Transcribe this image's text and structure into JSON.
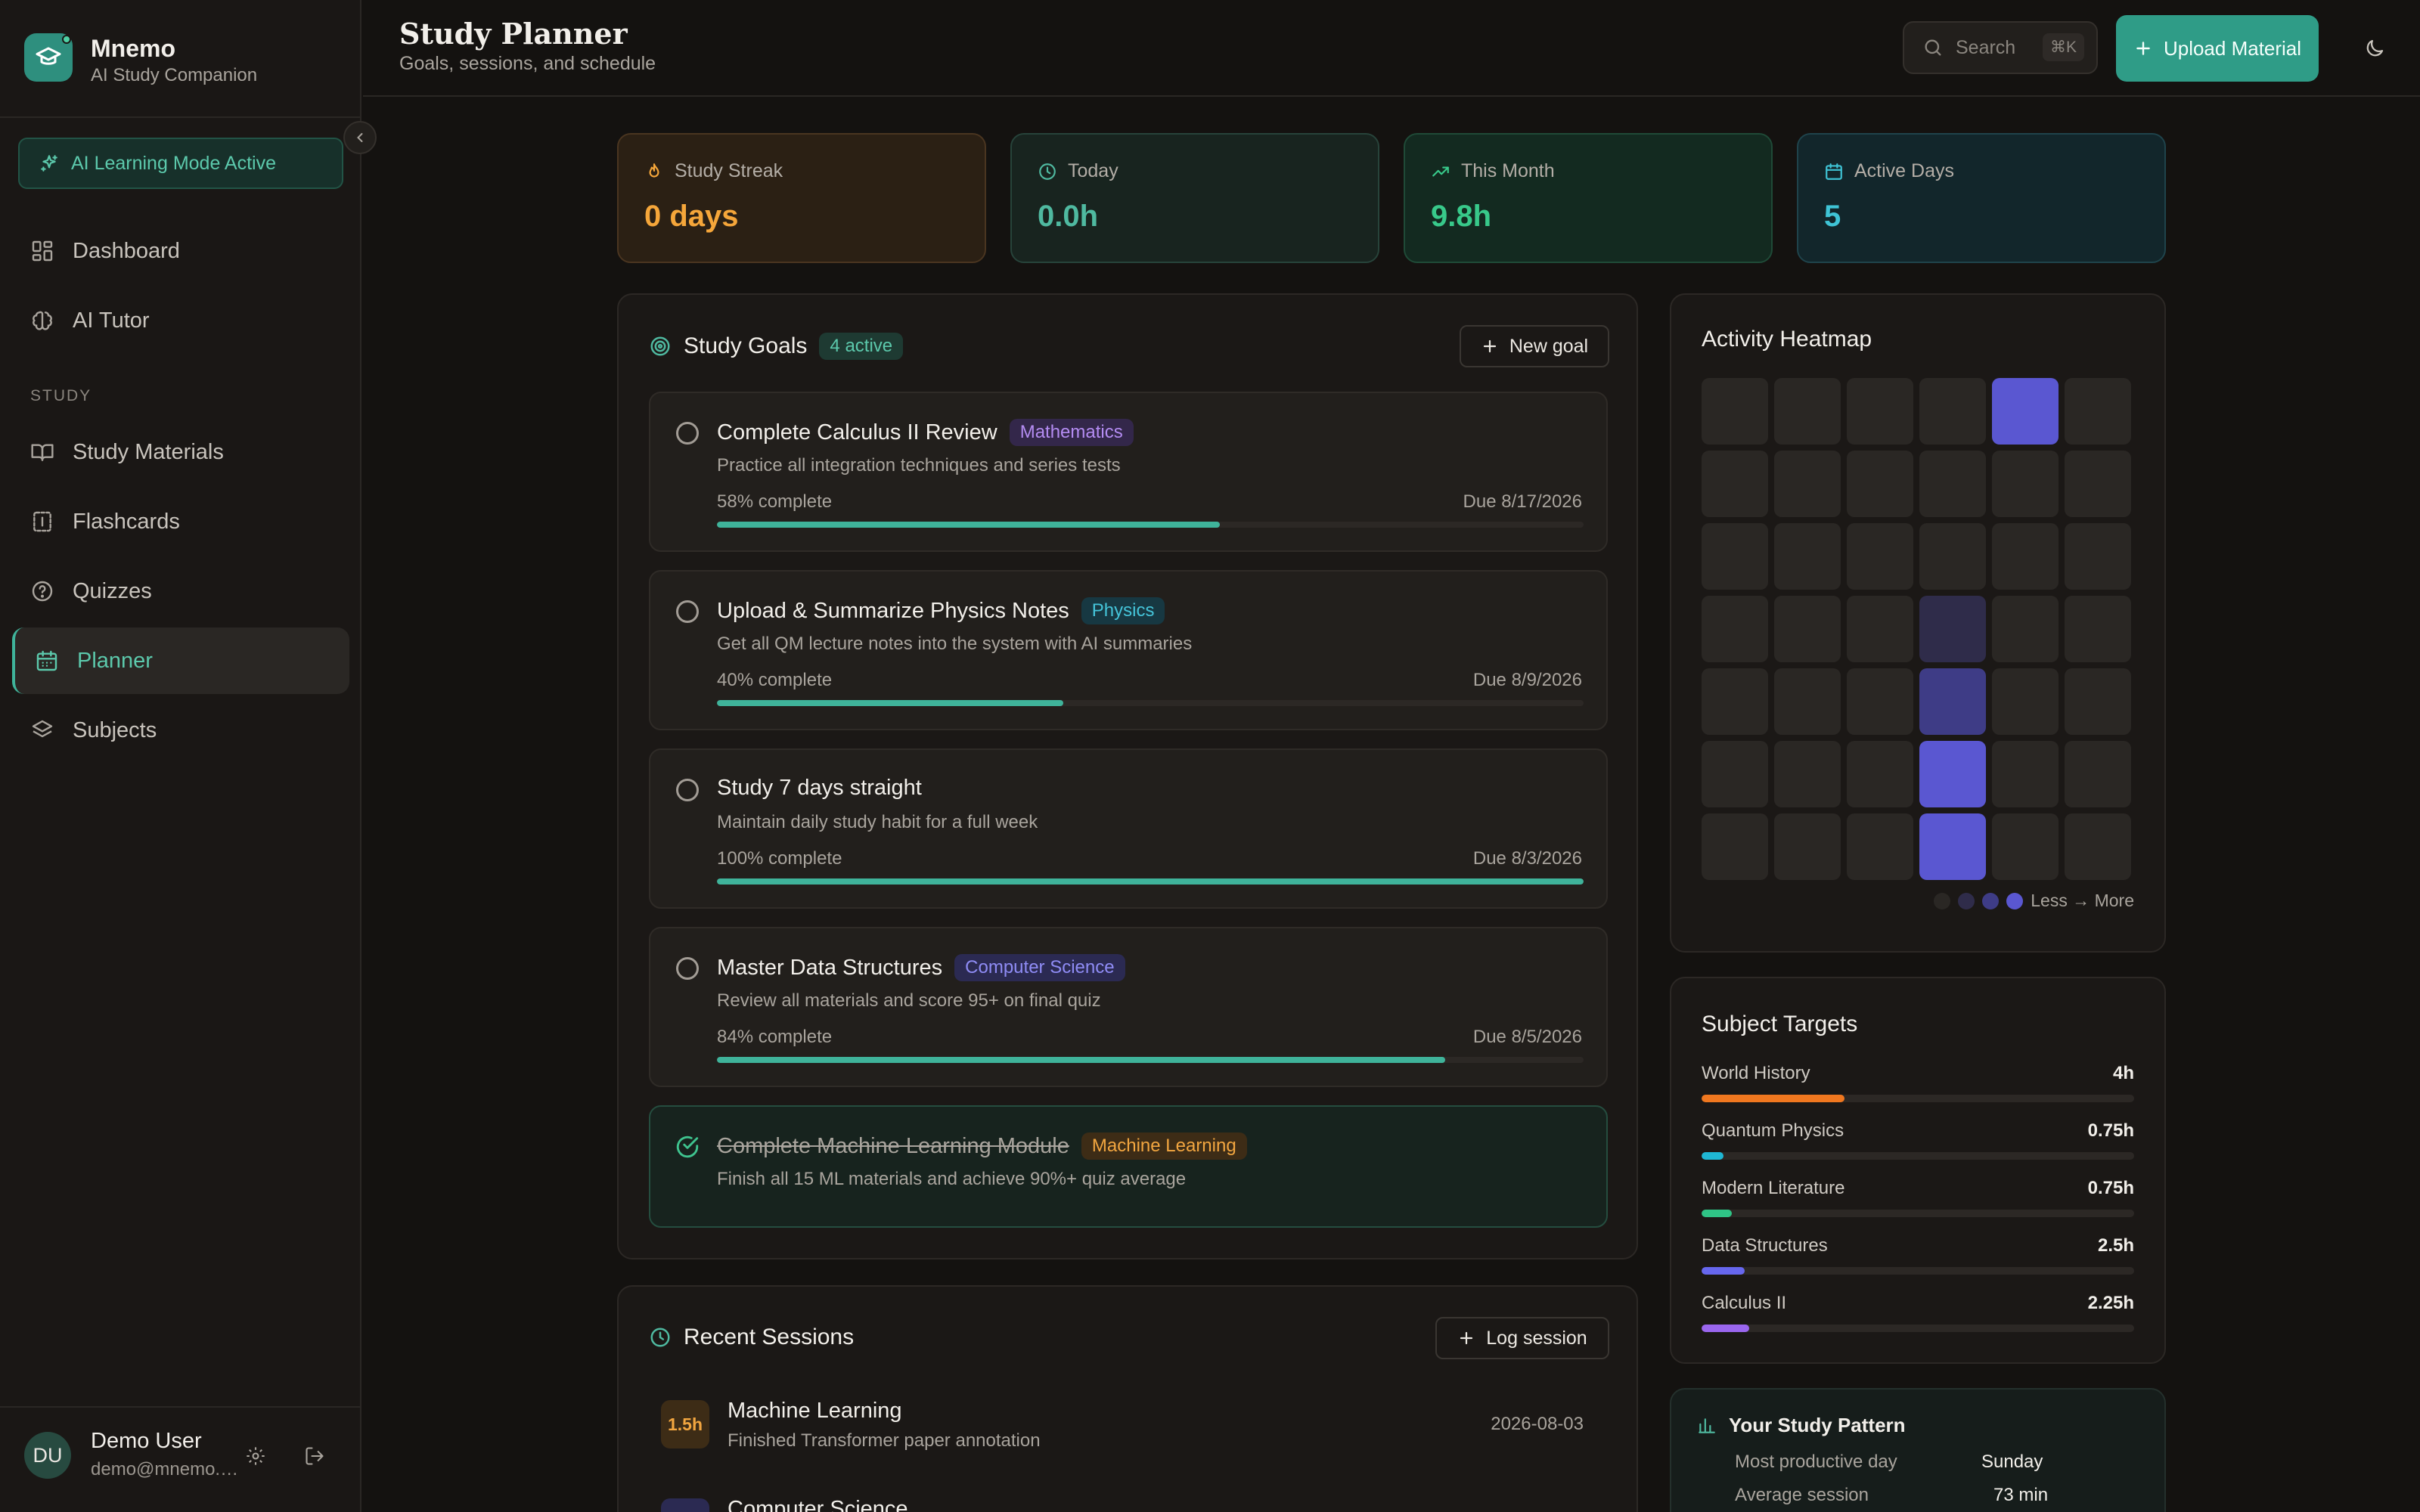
{
  "app": {
    "name": "Mnemo",
    "tagline": "AI Study Companion",
    "ai_mode": "AI Learning Mode Active"
  },
  "nav": {
    "items_top": [
      {
        "label": "Dashboard",
        "icon": "dashboard-icon"
      },
      {
        "label": "AI Tutor",
        "icon": "brain-icon"
      }
    ],
    "section_label": "STUDY",
    "items_study": [
      {
        "label": "Study Materials",
        "icon": "book-icon"
      },
      {
        "label": "Flashcards",
        "icon": "flashcards-icon"
      },
      {
        "label": "Quizzes",
        "icon": "help-circle-icon"
      },
      {
        "label": "Planner",
        "icon": "calendar-icon",
        "active": true
      },
      {
        "label": "Subjects",
        "icon": "layers-icon"
      }
    ]
  },
  "user": {
    "initials": "DU",
    "name": "Demo User",
    "email": "demo@mnemo.app"
  },
  "header": {
    "title": "Study Planner",
    "subtitle": "Goals, sessions, and schedule",
    "search_placeholder": "Search",
    "search_shortcut": "⌘K",
    "upload_label": "Upload Material"
  },
  "stats": [
    {
      "label": "Study Streak",
      "value": "0 days",
      "icon": "flame-icon",
      "color": "#f5a63a"
    },
    {
      "label": "Today",
      "value": "0.0h",
      "icon": "clock-icon",
      "color": "#4fb9a0"
    },
    {
      "label": "This Month",
      "value": "9.8h",
      "icon": "trending-up-icon",
      "color": "#38c98a"
    },
    {
      "label": "Active Days",
      "value": "5",
      "icon": "calendar-icon",
      "color": "#3fc4d6"
    }
  ],
  "goals": {
    "title": "Study Goals",
    "active_badge": "4 active",
    "new_label": "New goal",
    "items": [
      {
        "title": "Complete Calculus II Review",
        "tag": "Mathematics",
        "tag_color": "#b48cf2",
        "tag_bg": "#33274a",
        "desc": "Practice all integration techniques and series tests",
        "progress_text": "58% complete",
        "progress": 58,
        "due": "Due 8/17/2026",
        "done": false
      },
      {
        "title": "Upload & Summarize Physics Notes",
        "tag": "Physics",
        "tag_color": "#45c4d9",
        "tag_bg": "#173842",
        "desc": "Get all QM lecture notes into the system with AI summaries",
        "progress_text": "40% complete",
        "progress": 40,
        "due": "Due 8/9/2026",
        "done": false
      },
      {
        "title": "Study 7 days straight",
        "tag": "",
        "tag_color": "",
        "tag_bg": "",
        "desc": "Maintain daily study habit for a full week",
        "progress_text": "100% complete",
        "progress": 100,
        "due": "Due 8/3/2026",
        "done": false
      },
      {
        "title": "Master Data Structures",
        "tag": "Computer Science",
        "tag_color": "#8f8cf5",
        "tag_bg": "#2b2a52",
        "desc": "Review all materials and score 95+ on final quiz",
        "progress_text": "84% complete",
        "progress": 84,
        "due": "Due 8/5/2026",
        "done": false
      },
      {
        "title": "Complete Machine Learning Module",
        "tag": "Machine Learning",
        "tag_color": "#f2a640",
        "tag_bg": "#3d2c16",
        "desc": "Finish all 15 ML materials and achieve 90%+ quiz average",
        "progress_text": "",
        "progress": 100,
        "due": "",
        "done": true
      }
    ]
  },
  "heatmap": {
    "title": "Activity Heatmap",
    "legend_label": "Less → More",
    "levels": [
      [
        0,
        0,
        0,
        0,
        3,
        0
      ],
      [
        0,
        0,
        0,
        0,
        0,
        0
      ],
      [
        0,
        0,
        0,
        0,
        0,
        0
      ],
      [
        0,
        0,
        0,
        1,
        0,
        0
      ],
      [
        0,
        0,
        0,
        2,
        0,
        0
      ],
      [
        0,
        0,
        0,
        3,
        0,
        0
      ],
      [
        0,
        0,
        0,
        3,
        0,
        0
      ]
    ],
    "colors": [
      "#2a2724",
      "#2f2c4a",
      "#3e3c86",
      "#5a57d1"
    ]
  },
  "targets": {
    "title": "Subject Targets",
    "items": [
      {
        "name": "World History",
        "value": "4h",
        "fraction": 0.33,
        "color": "#f0771f"
      },
      {
        "name": "Quantum Physics",
        "value": "0.75h",
        "fraction": 0.05,
        "color": "#1fb7d4"
      },
      {
        "name": "Modern Literature",
        "value": "0.75h",
        "fraction": 0.07,
        "color": "#2fc486"
      },
      {
        "name": "Data Structures",
        "value": "2.5h",
        "fraction": 0.1,
        "color": "#6767ee"
      },
      {
        "name": "Calculus II",
        "value": "2.25h",
        "fraction": 0.11,
        "color": "#9a66ee"
      }
    ]
  },
  "sessions": {
    "title": "Recent Sessions",
    "log_label": "Log session",
    "items": [
      {
        "duration": "1.5h",
        "subject": "Machine Learning",
        "note": "Finished Transformer paper annotation",
        "date": "2026-08-03",
        "color": "#f2a640",
        "bg": "#3d2c16"
      },
      {
        "duration": "",
        "subject": "Computer Science",
        "note": "",
        "date": "",
        "color": "#8f8cf5",
        "bg": "#2b2a52"
      }
    ]
  },
  "pattern": {
    "title": "Your Study Pattern",
    "rows": [
      {
        "label": "Most productive day",
        "value": "Sunday"
      },
      {
        "label": "Average session",
        "value": "73 min"
      }
    ]
  }
}
